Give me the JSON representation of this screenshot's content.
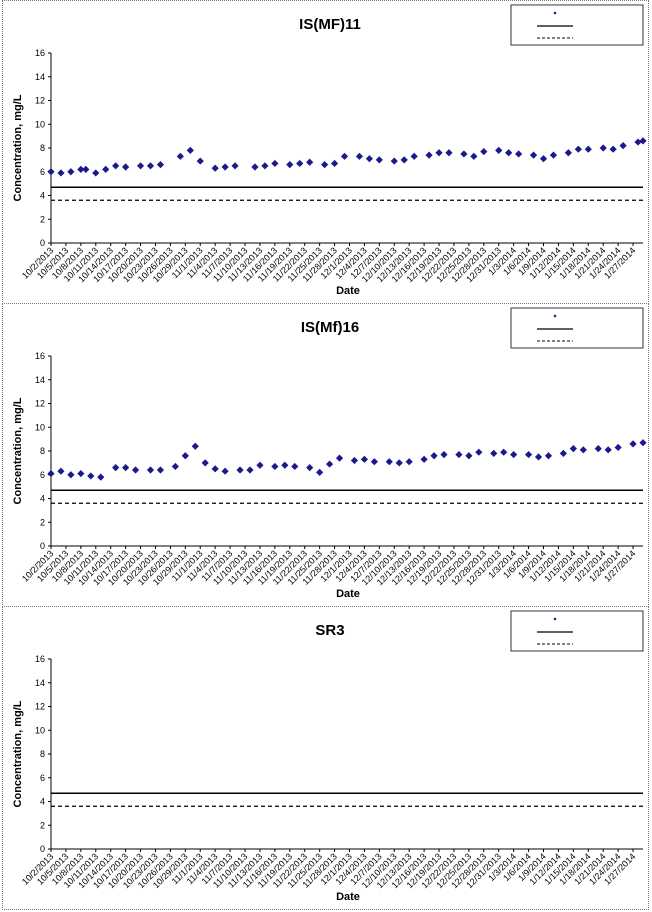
{
  "x_dates": [
    "10/2/2013",
    "10/5/2013",
    "10/8/2013",
    "10/11/2013",
    "10/14/2013",
    "10/17/2013",
    "10/20/2013",
    "10/23/2013",
    "10/26/2013",
    "10/29/2013",
    "11/1/2013",
    "11/4/2013",
    "11/7/2013",
    "11/10/2013",
    "11/13/2013",
    "11/16/2013",
    "11/19/2013",
    "11/22/2013",
    "11/25/2013",
    "11/28/2013",
    "12/1/2013",
    "12/4/2013",
    "12/7/2013",
    "12/10/2013",
    "12/13/2013",
    "12/16/2013",
    "12/19/2013",
    "12/22/2013",
    "12/25/2013",
    "12/28/2013",
    "12/31/2013",
    "1/3/2014",
    "1/6/2014",
    "1/9/2014",
    "1/12/2014",
    "1/15/2014",
    "1/18/2014",
    "1/21/2014",
    "1/24/2014",
    "1/27/2014"
  ],
  "chart_data": [
    {
      "type": "scatter",
      "title": "IS(MF)11",
      "xlabel": "Date",
      "ylabel": "Concentration, mg/L",
      "ylim": [
        0,
        16
      ],
      "yticks": [
        0,
        2,
        4,
        6,
        8,
        10,
        12,
        14,
        16
      ],
      "xlim": [
        "10/2/2013",
        "1/29/2014"
      ],
      "legend_position": "top-right",
      "colors": {
        "points": "#1a1a8c",
        "lines": "#000000"
      },
      "points": {
        "x": [
          "10/2/2013",
          "10/4/2013",
          "10/6/2013",
          "10/8/2013",
          "10/9/2013",
          "10/11/2013",
          "10/13/2013",
          "10/15/2013",
          "10/17/2013",
          "10/20/2013",
          "10/22/2013",
          "10/24/2013",
          "10/28/2013",
          "10/30/2013",
          "11/1/2013",
          "11/4/2013",
          "11/6/2013",
          "11/8/2013",
          "11/12/2013",
          "11/14/2013",
          "11/16/2013",
          "11/19/2013",
          "11/21/2013",
          "11/23/2013",
          "11/26/2013",
          "11/28/2013",
          "11/30/2013",
          "12/3/2013",
          "12/5/2013",
          "12/7/2013",
          "12/10/2013",
          "12/12/2013",
          "12/14/2013",
          "12/17/2013",
          "12/19/2013",
          "12/21/2013",
          "12/24/2013",
          "12/26/2013",
          "12/28/2013",
          "12/31/2013",
          "1/2/2014",
          "1/4/2014",
          "1/7/2014",
          "1/9/2014",
          "1/11/2014",
          "1/14/2014",
          "1/16/2014",
          "1/18/2014",
          "1/21/2014",
          "1/23/2014",
          "1/25/2014",
          "1/28/2014",
          "1/29/2014"
        ],
        "y": [
          6.0,
          5.9,
          6.0,
          6.2,
          6.2,
          5.9,
          6.2,
          6.5,
          6.4,
          6.5,
          6.5,
          6.6,
          7.3,
          7.8,
          6.9,
          6.3,
          6.4,
          6.5,
          6.4,
          6.5,
          6.7,
          6.6,
          6.7,
          6.8,
          6.6,
          6.7,
          7.3,
          7.3,
          7.1,
          7.0,
          6.9,
          7.0,
          7.3,
          7.4,
          7.6,
          7.6,
          7.5,
          7.3,
          7.7,
          7.8,
          7.6,
          7.5,
          7.4,
          7.1,
          7.4,
          7.6,
          7.9,
          7.9,
          8.0,
          7.9,
          8.2,
          8.5,
          8.6
        ]
      },
      "lines": [
        {
          "y": 4.7,
          "style": "solid"
        },
        {
          "y": 3.6,
          "style": "dashed"
        }
      ]
    },
    {
      "type": "scatter",
      "title": "IS(Mf)16",
      "xlabel": "Date",
      "ylabel": "Concentration, mg/L",
      "ylim": [
        0,
        16
      ],
      "yticks": [
        0,
        2,
        4,
        6,
        8,
        10,
        12,
        14,
        16
      ],
      "xlim": [
        "10/2/2013",
        "1/29/2014"
      ],
      "legend_position": "top-right",
      "colors": {
        "points": "#1a1a8c",
        "lines": "#000000"
      },
      "points": {
        "x": [
          "10/2/2013",
          "10/4/2013",
          "10/6/2013",
          "10/8/2013",
          "10/10/2013",
          "10/12/2013",
          "10/15/2013",
          "10/17/2013",
          "10/19/2013",
          "10/22/2013",
          "10/24/2013",
          "10/27/2013",
          "10/29/2013",
          "10/31/2013",
          "11/2/2013",
          "11/4/2013",
          "11/6/2013",
          "11/9/2013",
          "11/11/2013",
          "11/13/2013",
          "11/16/2013",
          "11/18/2013",
          "11/20/2013",
          "11/23/2013",
          "11/25/2013",
          "11/27/2013",
          "11/29/2013",
          "12/2/2013",
          "12/4/2013",
          "12/6/2013",
          "12/9/2013",
          "12/11/2013",
          "12/13/2013",
          "12/16/2013",
          "12/18/2013",
          "12/20/2013",
          "12/23/2013",
          "12/25/2013",
          "12/27/2013",
          "12/30/2013",
          "1/1/2014",
          "1/3/2014",
          "1/6/2014",
          "1/8/2014",
          "1/10/2014",
          "1/13/2014",
          "1/15/2014",
          "1/17/2014",
          "1/20/2014",
          "1/22/2014",
          "1/24/2014",
          "1/27/2014",
          "1/29/2014"
        ],
        "y": [
          6.1,
          6.3,
          6.0,
          6.1,
          5.9,
          5.8,
          6.6,
          6.6,
          6.4,
          6.4,
          6.4,
          6.7,
          7.6,
          8.4,
          7.0,
          6.5,
          6.3,
          6.4,
          6.4,
          6.8,
          6.7,
          6.8,
          6.7,
          6.6,
          6.2,
          6.9,
          7.4,
          7.2,
          7.3,
          7.1,
          7.1,
          7.0,
          7.1,
          7.3,
          7.6,
          7.7,
          7.7,
          7.6,
          7.9,
          7.8,
          7.9,
          7.7,
          7.7,
          7.5,
          7.6,
          7.8,
          8.2,
          8.1,
          8.2,
          8.1,
          8.3,
          8.6,
          8.7
        ]
      },
      "lines": [
        {
          "y": 4.7,
          "style": "solid"
        },
        {
          "y": 3.6,
          "style": "dashed"
        }
      ]
    },
    {
      "type": "scatter",
      "title": "SR3",
      "xlabel": "Date",
      "ylabel": "Concentration, mg/L",
      "ylim": [
        0,
        16
      ],
      "yticks": [
        0,
        2,
        4,
        6,
        8,
        10,
        12,
        14,
        16
      ],
      "xlim": [
        "10/2/2013",
        "1/29/2014"
      ],
      "legend_position": "top-right",
      "colors": {
        "points": "#1a1a8c",
        "lines": "#000000"
      },
      "points": {
        "x": [],
        "y": []
      },
      "lines": [
        {
          "y": 4.7,
          "style": "solid"
        },
        {
          "y": 3.6,
          "style": "dashed"
        }
      ]
    }
  ]
}
